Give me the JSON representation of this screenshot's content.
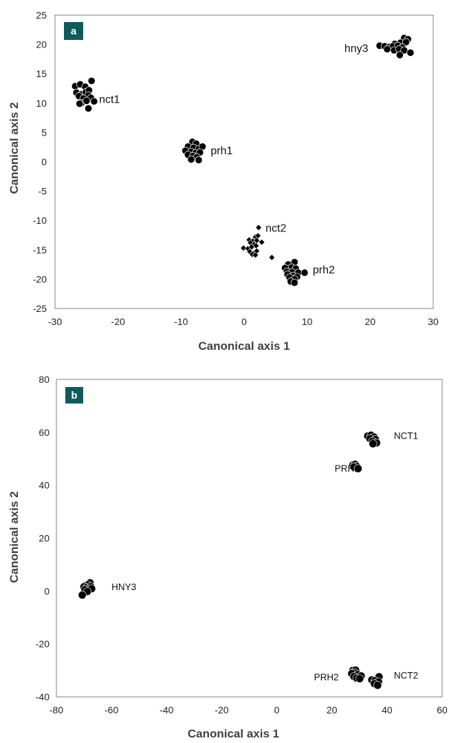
{
  "chart_data": [
    {
      "panel": "a",
      "type": "scatter",
      "xlabel": "Canonical axis 1",
      "ylabel": "Canonical axis 2",
      "xlim": [
        -30,
        30
      ],
      "ylim": [
        -25,
        25
      ],
      "xticks": [
        "-30",
        "-20",
        "-10",
        "0",
        "10",
        "20",
        "30"
      ],
      "yticks": [
        "25",
        "20",
        "15",
        "10",
        "5",
        "0",
        "-5",
        "-10",
        "-15",
        "-20",
        "-25"
      ],
      "grid": false,
      "series": [
        {
          "label": "nct1",
          "marker": "circle",
          "points": [
            [
              -26.8,
              12.9
            ],
            [
              -26.0,
              13.2
            ],
            [
              -25.2,
              12.8
            ],
            [
              -24.2,
              13.8
            ],
            [
              -26.6,
              11.8
            ],
            [
              -25.8,
              11.5
            ],
            [
              -25.1,
              11.9
            ],
            [
              -24.6,
              12.2
            ],
            [
              -26.2,
              11.2
            ],
            [
              -24.7,
              11.3
            ],
            [
              -25.5,
              10.8
            ],
            [
              -25.8,
              10.0
            ],
            [
              -24.3,
              10.9
            ],
            [
              -23.8,
              10.3
            ],
            [
              -25.0,
              10.4
            ],
            [
              -26.1,
              9.9
            ],
            [
              -24.7,
              9.1
            ]
          ]
        },
        {
          "label": "prh1",
          "marker": "circle",
          "points": [
            [
              -8.2,
              3.4
            ],
            [
              -7.6,
              3.1
            ],
            [
              -8.9,
              2.6
            ],
            [
              -8.0,
              2.4
            ],
            [
              -7.2,
              2.2
            ],
            [
              -6.6,
              2.6
            ],
            [
              -9.3,
              1.9
            ],
            [
              -8.4,
              1.7
            ],
            [
              -7.7,
              1.5
            ],
            [
              -7.0,
              1.6
            ],
            [
              -8.9,
              1.2
            ],
            [
              -8.1,
              1.0
            ],
            [
              -7.5,
              0.8
            ],
            [
              -8.4,
              0.4
            ],
            [
              -7.2,
              0.3
            ]
          ]
        },
        {
          "label": "nct2",
          "marker": "diamond",
          "points": [
            [
              2.3,
              -11.2
            ],
            [
              1.8,
              -12.8
            ],
            [
              2.2,
              -12.6
            ],
            [
              0.8,
              -13.3
            ],
            [
              1.4,
              -13.5
            ],
            [
              2.0,
              -13.4
            ],
            [
              2.8,
              -13.7
            ],
            [
              1.0,
              -13.8
            ],
            [
              1.6,
              -14.1
            ],
            [
              -0.1,
              -14.7
            ],
            [
              0.6,
              -14.8
            ],
            [
              1.2,
              -14.5
            ],
            [
              1.9,
              -14.3
            ],
            [
              0.9,
              -15.3
            ],
            [
              1.6,
              -15.5
            ],
            [
              2.0,
              -15.2
            ],
            [
              1.3,
              -15.8
            ],
            [
              1.8,
              -15.9
            ],
            [
              4.4,
              -16.3
            ]
          ]
        },
        {
          "label": "prh2",
          "marker": "circle",
          "points": [
            [
              8.0,
              -17.1
            ],
            [
              7.0,
              -17.5
            ],
            [
              7.5,
              -18.0
            ],
            [
              6.5,
              -18.1
            ],
            [
              8.2,
              -18.2
            ],
            [
              6.8,
              -18.7
            ],
            [
              7.6,
              -18.8
            ],
            [
              8.6,
              -18.9
            ],
            [
              9.6,
              -18.9
            ],
            [
              6.9,
              -19.2
            ],
            [
              7.8,
              -19.4
            ],
            [
              8.4,
              -19.6
            ],
            [
              7.2,
              -19.7
            ],
            [
              8.0,
              -20.0
            ],
            [
              7.4,
              -20.4
            ],
            [
              8.0,
              -20.6
            ]
          ]
        },
        {
          "label": "hny3",
          "marker": "circle",
          "points": [
            [
              25.4,
              21.1
            ],
            [
              26.0,
              20.9
            ],
            [
              24.8,
              20.3
            ],
            [
              23.9,
              20.1
            ],
            [
              25.7,
              20.4
            ],
            [
              21.5,
              19.8
            ],
            [
              22.3,
              19.7
            ],
            [
              23.1,
              19.6
            ],
            [
              23.6,
              19.7
            ],
            [
              24.4,
              19.8
            ],
            [
              25.1,
              19.5
            ],
            [
              22.7,
              19.2
            ],
            [
              23.8,
              19.0
            ],
            [
              24.6,
              19.2
            ],
            [
              25.4,
              19.0
            ],
            [
              26.4,
              18.6
            ],
            [
              24.7,
              18.2
            ]
          ]
        }
      ]
    },
    {
      "panel": "b",
      "type": "scatter",
      "xlabel": "Canonical axis 1",
      "ylabel": "Canonical axis 2",
      "xlim": [
        -80,
        60
      ],
      "ylim": [
        -40,
        80
      ],
      "xticks": [
        "-80",
        "-60",
        "-40",
        "-20",
        "0",
        "20",
        "40",
        "60"
      ],
      "yticks": [
        "80",
        "60",
        "40",
        "20",
        "0",
        "-20",
        "-40"
      ],
      "grid": false,
      "series": [
        {
          "label": "NCT1",
          "marker": "circle",
          "points": [
            [
              33.0,
              58.6
            ],
            [
              34.2,
              58.9
            ],
            [
              35.3,
              58.2
            ],
            [
              33.8,
              57.6
            ],
            [
              35.8,
              57.3
            ],
            [
              34.7,
              56.6
            ],
            [
              36.2,
              56.0
            ],
            [
              34.9,
              55.7
            ]
          ]
        },
        {
          "label": "PRH1",
          "marker": "circle",
          "points": [
            [
              27.6,
              47.6
            ],
            [
              28.4,
              47.9
            ],
            [
              28.9,
              47.2
            ],
            [
              28.0,
              46.9
            ],
            [
              29.5,
              46.3
            ]
          ]
        },
        {
          "label": "HNY3",
          "marker": "circle",
          "points": [
            [
              -67.8,
              3.1
            ],
            [
              -69.5,
              2.1
            ],
            [
              -68.6,
              2.3
            ],
            [
              -70.0,
              1.6
            ],
            [
              -69.0,
              1.3
            ],
            [
              -67.5,
              1.7
            ],
            [
              -68.3,
              0.8
            ],
            [
              -69.6,
              0.5
            ],
            [
              -67.2,
              0.9
            ],
            [
              -68.8,
              -0.2
            ],
            [
              -70.6,
              -1.5
            ]
          ]
        },
        {
          "label": "PRH2",
          "marker": "circle",
          "points": [
            [
              27.6,
              -30.0
            ],
            [
              28.6,
              -29.9
            ],
            [
              28.2,
              -30.9
            ],
            [
              27.2,
              -31.2
            ],
            [
              29.4,
              -31.6
            ],
            [
              30.6,
              -32.1
            ],
            [
              28.0,
              -32.3
            ],
            [
              29.0,
              -32.9
            ],
            [
              30.1,
              -33.1
            ]
          ]
        },
        {
          "label": "NCT2",
          "marker": "circle",
          "points": [
            [
              37.1,
              -32.4
            ],
            [
              34.5,
              -33.6
            ],
            [
              35.6,
              -33.9
            ],
            [
              36.9,
              -34.3
            ],
            [
              35.4,
              -35.0
            ],
            [
              36.6,
              -35.6
            ]
          ]
        }
      ]
    }
  ]
}
